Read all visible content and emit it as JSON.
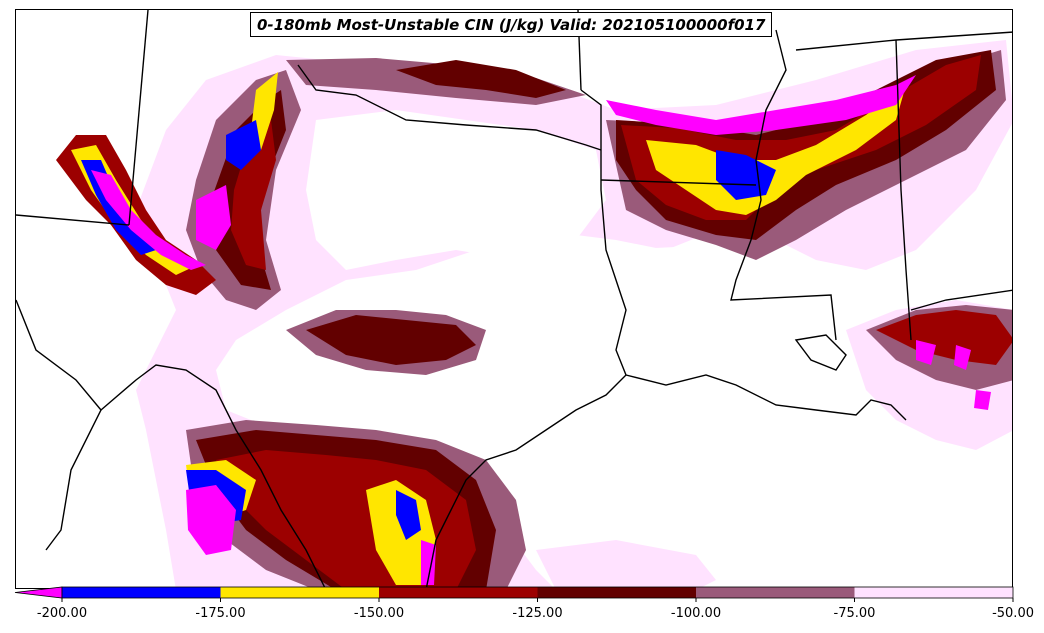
{
  "title": "0-180mb Most-Unstable CIN (J/kg) Valid: 202105100000f017",
  "colorbar": {
    "ticks": [
      "-200.00",
      "-175.00",
      "-150.00",
      "-125.00",
      "-100.00",
      "-75.00",
      "-50.00"
    ],
    "bins": [
      {
        "from": -200,
        "to": -175,
        "color": "#0000ff"
      },
      {
        "from": -175,
        "to": -150,
        "color": "#ffe600"
      },
      {
        "from": -150,
        "to": -125,
        "color": "#9c0000"
      },
      {
        "from": -125,
        "to": -100,
        "color": "#620000"
      },
      {
        "from": -100,
        "to": -75,
        "color": "#9a5a7a"
      },
      {
        "from": -75,
        "to": -50,
        "color": "#ffe2ff"
      }
    ],
    "under_color": "#ff00ff",
    "extend": "min"
  },
  "map_colors": {
    "pink": "#ff00ff",
    "blue": "#0000ff",
    "yellow": "#ffe600",
    "red": "#9c0000",
    "darkred": "#620000",
    "mauve": "#9a5a7a",
    "lightpink": "#ffe2ff",
    "border": "#000000"
  }
}
